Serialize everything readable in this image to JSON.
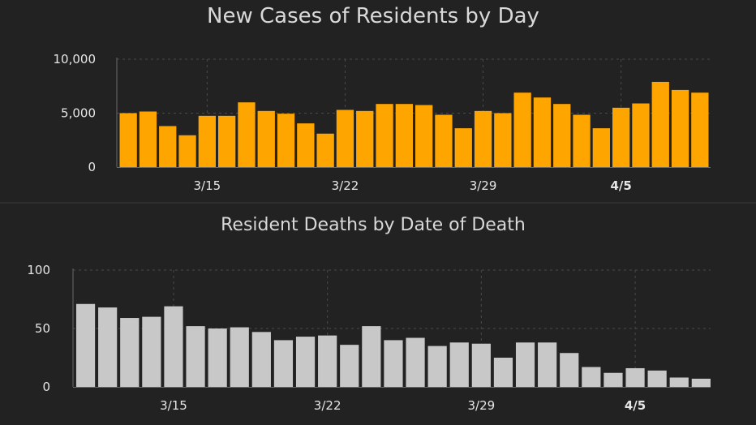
{
  "chart_data": [
    {
      "type": "bar",
      "title": "New Cases of Residents by Day",
      "color": "#FFA500",
      "ylim": [
        0,
        10000
      ],
      "yticks": [
        {
          "value": 0,
          "label": "0"
        },
        {
          "value": 5000,
          "label": "5,000"
        },
        {
          "value": 10000,
          "label": "10,000"
        }
      ],
      "x_labels": [
        {
          "index": 4,
          "label": "3/15",
          "bold": false
        },
        {
          "index": 11,
          "label": "3/22",
          "bold": false
        },
        {
          "index": 18,
          "label": "3/29",
          "bold": false
        },
        {
          "index": 25,
          "label": "4/5",
          "bold": true
        }
      ],
      "values": [
        5000,
        5150,
        3800,
        2950,
        4750,
        4750,
        6000,
        5200,
        4950,
        4050,
        3100,
        5300,
        5200,
        5850,
        5850,
        5750,
        4850,
        3600,
        5200,
        5000,
        6900,
        6450,
        5850,
        4850,
        3600,
        5500,
        5900,
        7900,
        7150,
        6900
      ],
      "grid": true
    },
    {
      "type": "bar",
      "title": "Resident Deaths by Date of Death",
      "color": "#C8C8C8",
      "ylim": [
        0,
        100
      ],
      "yticks": [
        {
          "value": 0,
          "label": "0"
        },
        {
          "value": 50,
          "label": "50"
        },
        {
          "value": 100,
          "label": "100"
        }
      ],
      "x_labels": [
        {
          "index": 4,
          "label": "3/15",
          "bold": false
        },
        {
          "index": 11,
          "label": "3/22",
          "bold": false
        },
        {
          "index": 18,
          "label": "3/29",
          "bold": false
        },
        {
          "index": 25,
          "label": "4/5",
          "bold": true
        }
      ],
      "values": [
        71,
        68,
        59,
        60,
        69,
        52,
        50,
        51,
        47,
        40,
        43,
        44,
        36,
        52,
        40,
        42,
        35,
        38,
        37,
        25,
        38,
        38,
        29,
        17,
        12,
        16,
        14,
        8,
        7
      ],
      "grid": true
    }
  ]
}
